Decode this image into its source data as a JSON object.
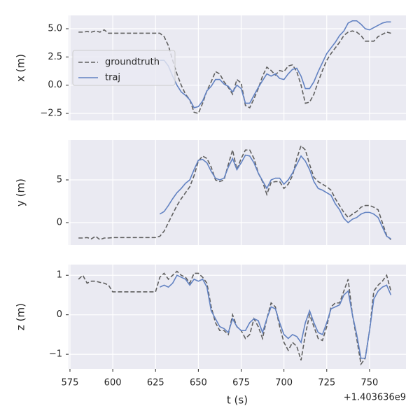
{
  "chart_data": [
    {
      "type": "line",
      "ylabel": "x (m)",
      "legend": "center left",
      "x": [
        580,
        582.5,
        585,
        587.5,
        590,
        592.5,
        595,
        597.5,
        600,
        602.5,
        605,
        607.5,
        610,
        612.5,
        615,
        617.5,
        620,
        622.5,
        625,
        627.5,
        630,
        632.5,
        635,
        637.5,
        640,
        642.5,
        645,
        647.5,
        650,
        652.5,
        655,
        657.5,
        660,
        662.5,
        665,
        667.5,
        670,
        672.5,
        675,
        677.5,
        680,
        682.5,
        685,
        687.5,
        690,
        692.5,
        695,
        697.5,
        700,
        702.5,
        705,
        707.5,
        710,
        712.5,
        715,
        717.5,
        720,
        722.5,
        725,
        727.5,
        730,
        732.5,
        735,
        737.5,
        740,
        742.5,
        745,
        747.5,
        750,
        752.5,
        755,
        757.5,
        760,
        762.5
      ],
      "xlim": [
        574.2,
        771.3
      ],
      "xticks": [
        575,
        600,
        625,
        650,
        675,
        700,
        725,
        750
      ],
      "ylim": [
        -3.12,
        6.18
      ],
      "yticks": [
        {
          "value": -2.5,
          "label": "−2.5"
        },
        {
          "value": 0,
          "label": "0.0"
        },
        {
          "value": 2.5,
          "label": "2.5"
        },
        {
          "value": 5,
          "label": "5.0"
        }
      ],
      "series": [
        {
          "name": "groundtruth",
          "color": "#5f5f5f",
          "linestyle": "dashed",
          "values": [
            4.7,
            4.7,
            4.75,
            4.7,
            4.8,
            4.7,
            4.9,
            4.6,
            4.6,
            4.6,
            4.6,
            4.6,
            4.6,
            4.6,
            4.6,
            4.6,
            4.6,
            4.6,
            4.6,
            4.6,
            4.3,
            3.5,
            2.2,
            1.0,
            0.0,
            -0.8,
            -1.3,
            -2.4,
            -2.5,
            -1.6,
            -0.5,
            0.3,
            1.2,
            1.0,
            0.3,
            -0.2,
            -0.8,
            0.5,
            0.2,
            -1.8,
            -2.0,
            -1.2,
            -0.3,
            0.8,
            1.6,
            1.3,
            0.9,
            1.3,
            1.2,
            1.7,
            1.8,
            1.2,
            0.0,
            -1.6,
            -1.5,
            -0.8,
            0.3,
            1.3,
            2.2,
            2.8,
            3.3,
            3.8,
            4.4,
            4.7,
            4.8,
            4.7,
            4.4,
            3.9,
            3.9,
            3.9,
            4.3,
            4.5,
            4.7,
            4.6
          ]
        },
        {
          "name": "traj",
          "color": "#6282c2",
          "linestyle": "solid",
          "values": [
            null,
            null,
            null,
            null,
            null,
            null,
            null,
            null,
            null,
            null,
            null,
            null,
            null,
            null,
            null,
            null,
            null,
            null,
            null,
            2.2,
            2.2,
            1.7,
            0.8,
            0.0,
            -0.6,
            -0.9,
            -1.3,
            -2.0,
            -1.9,
            -1.4,
            -0.5,
            -0.1,
            0.5,
            0.5,
            0.1,
            -0.1,
            -0.6,
            0.0,
            -0.3,
            -1.6,
            -1.6,
            -0.9,
            -0.2,
            0.4,
            1.0,
            0.8,
            1.0,
            0.6,
            0.5,
            1.0,
            1.4,
            1.5,
            0.8,
            -0.3,
            -0.3,
            0.3,
            1.2,
            2.0,
            2.8,
            3.3,
            3.8,
            4.4,
            4.8,
            5.5,
            5.7,
            5.7,
            5.4,
            5.0,
            4.9,
            5.1,
            5.3,
            5.5,
            5.6,
            5.6
          ]
        }
      ]
    },
    {
      "type": "line",
      "ylabel": "y (m)",
      "x": [
        580,
        582.5,
        585,
        587.5,
        590,
        592.5,
        595,
        597.5,
        600,
        602.5,
        605,
        607.5,
        610,
        612.5,
        615,
        617.5,
        620,
        622.5,
        625,
        627.5,
        630,
        632.5,
        635,
        637.5,
        640,
        642.5,
        645,
        647.5,
        650,
        652.5,
        655,
        657.5,
        660,
        662.5,
        665,
        667.5,
        670,
        672.5,
        675,
        677.5,
        680,
        682.5,
        685,
        687.5,
        690,
        692.5,
        695,
        697.5,
        700,
        702.5,
        705,
        707.5,
        710,
        712.5,
        715,
        717.5,
        720,
        722.5,
        725,
        727.5,
        730,
        732.5,
        735,
        737.5,
        740,
        742.5,
        745,
        747.5,
        750,
        752.5,
        755,
        757.5,
        760,
        762.5
      ],
      "xlim": [
        574.2,
        771.3
      ],
      "xticks": [
        575,
        600,
        625,
        650,
        675,
        700,
        725,
        750
      ],
      "ylim": [
        -2.62,
        9.67
      ],
      "yticks": [
        0,
        5
      ],
      "series": [
        {
          "color": "#5f5f5f",
          "linestyle": "dashed",
          "values": [
            -1.8,
            -1.8,
            -1.75,
            -1.9,
            -1.6,
            -2.0,
            -1.8,
            -1.8,
            -1.75,
            -1.75,
            -1.75,
            -1.75,
            -1.75,
            -1.75,
            -1.75,
            -1.75,
            -1.75,
            -1.75,
            -1.75,
            -1.6,
            -1.0,
            0.0,
            1.0,
            2.0,
            2.8,
            3.5,
            4.2,
            5.5,
            7.2,
            7.8,
            7.5,
            6.5,
            5.0,
            4.8,
            5.0,
            6.8,
            8.5,
            6.2,
            7.5,
            8.5,
            8.5,
            7.5,
            5.8,
            4.8,
            3.3,
            4.7,
            4.8,
            4.8,
            4.0,
            4.5,
            5.5,
            7.5,
            9.0,
            8.5,
            6.8,
            5.3,
            4.8,
            4.5,
            4.2,
            3.8,
            2.8,
            2.0,
            1.2,
            0.6,
            1.0,
            1.3,
            1.8,
            2.0,
            2.0,
            1.8,
            1.5,
            0.0,
            -1.5,
            -2.0
          ]
        },
        {
          "color": "#6282c2",
          "linestyle": "solid",
          "values": [
            null,
            null,
            null,
            null,
            null,
            null,
            null,
            null,
            null,
            null,
            null,
            null,
            null,
            null,
            null,
            null,
            null,
            null,
            null,
            1.0,
            1.3,
            2.0,
            2.8,
            3.5,
            4.0,
            4.6,
            5.0,
            6.2,
            7.3,
            7.4,
            7.0,
            6.0,
            5.2,
            5.0,
            5.2,
            6.5,
            7.5,
            6.2,
            7.0,
            7.9,
            7.8,
            7.0,
            5.8,
            4.9,
            4.0,
            5.0,
            5.2,
            5.2,
            4.5,
            5.0,
            5.8,
            6.8,
            7.8,
            7.2,
            6.2,
            4.8,
            4.0,
            3.8,
            3.5,
            3.2,
            2.2,
            1.5,
            0.5,
            0.0,
            0.4,
            0.6,
            1.0,
            1.2,
            1.2,
            1.0,
            0.6,
            -0.5,
            -1.6,
            -1.9
          ]
        }
      ]
    },
    {
      "type": "line",
      "ylabel": "z (m)",
      "xlabel": "t (s)",
      "x_offset_label": "+1.403636e9",
      "x": [
        580,
        582.5,
        585,
        587.5,
        590,
        592.5,
        595,
        597.5,
        600,
        602.5,
        605,
        607.5,
        610,
        612.5,
        615,
        617.5,
        620,
        622.5,
        625,
        627.5,
        630,
        632.5,
        635,
        637.5,
        640,
        642.5,
        645,
        647.5,
        650,
        652.5,
        655,
        657.5,
        660,
        662.5,
        665,
        667.5,
        670,
        672.5,
        675,
        677.5,
        680,
        682.5,
        685,
        687.5,
        690,
        692.5,
        695,
        697.5,
        700,
        702.5,
        705,
        707.5,
        710,
        712.5,
        715,
        717.5,
        720,
        722.5,
        725,
        727.5,
        730,
        732.5,
        735,
        737.5,
        740,
        742.5,
        745,
        747.5,
        750,
        752.5,
        755,
        757.5,
        760,
        762.5
      ],
      "xlim": [
        574.2,
        771.3
      ],
      "xticks": [
        575,
        600,
        625,
        650,
        675,
        700,
        725,
        750
      ],
      "ylim": [
        -1.37,
        1.27
      ],
      "yticks": [
        {
          "value": -1,
          "label": "−1"
        },
        0,
        1
      ],
      "series": [
        {
          "color": "#5f5f5f",
          "linestyle": "dashed",
          "values": [
            0.9,
            1.0,
            0.8,
            0.85,
            0.85,
            0.82,
            0.8,
            0.75,
            0.58,
            0.58,
            0.58,
            0.58,
            0.58,
            0.58,
            0.58,
            0.58,
            0.58,
            0.58,
            0.58,
            0.95,
            1.05,
            0.9,
            1.0,
            1.1,
            1.0,
            0.95,
            0.8,
            1.05,
            1.05,
            0.95,
            0.8,
            0.2,
            -0.2,
            -0.4,
            -0.4,
            -0.5,
            0.0,
            -0.3,
            -0.4,
            -0.6,
            -0.5,
            -0.1,
            -0.3,
            -0.6,
            -0.1,
            0.3,
            0.2,
            -0.3,
            -0.7,
            -0.9,
            -0.7,
            -0.8,
            -1.15,
            -0.5,
            0.0,
            -0.3,
            -0.6,
            -0.65,
            -0.3,
            0.2,
            0.3,
            0.3,
            0.6,
            0.9,
            0.0,
            -0.6,
            -1.25,
            -1.1,
            -0.4,
            0.6,
            0.75,
            0.85,
            1.0,
            0.6
          ]
        },
        {
          "color": "#6282c2",
          "linestyle": "solid",
          "values": [
            null,
            null,
            null,
            null,
            null,
            null,
            null,
            null,
            null,
            null,
            null,
            null,
            null,
            null,
            null,
            null,
            null,
            null,
            null,
            0.7,
            0.75,
            0.7,
            0.8,
            1.0,
            0.95,
            0.9,
            0.75,
            0.9,
            0.85,
            0.9,
            0.7,
            0.1,
            -0.1,
            -0.3,
            -0.35,
            -0.45,
            -0.1,
            -0.3,
            -0.4,
            -0.4,
            -0.2,
            -0.1,
            -0.15,
            -0.45,
            -0.1,
            0.2,
            0.15,
            -0.2,
            -0.5,
            -0.6,
            -0.5,
            -0.55,
            -0.7,
            -0.2,
            0.1,
            -0.2,
            -0.45,
            -0.5,
            -0.2,
            0.15,
            0.2,
            0.25,
            0.5,
            0.6,
            0.0,
            -0.5,
            -1.1,
            -1.1,
            -0.4,
            0.4,
            0.6,
            0.7,
            0.75,
            0.5
          ]
        }
      ]
    }
  ]
}
